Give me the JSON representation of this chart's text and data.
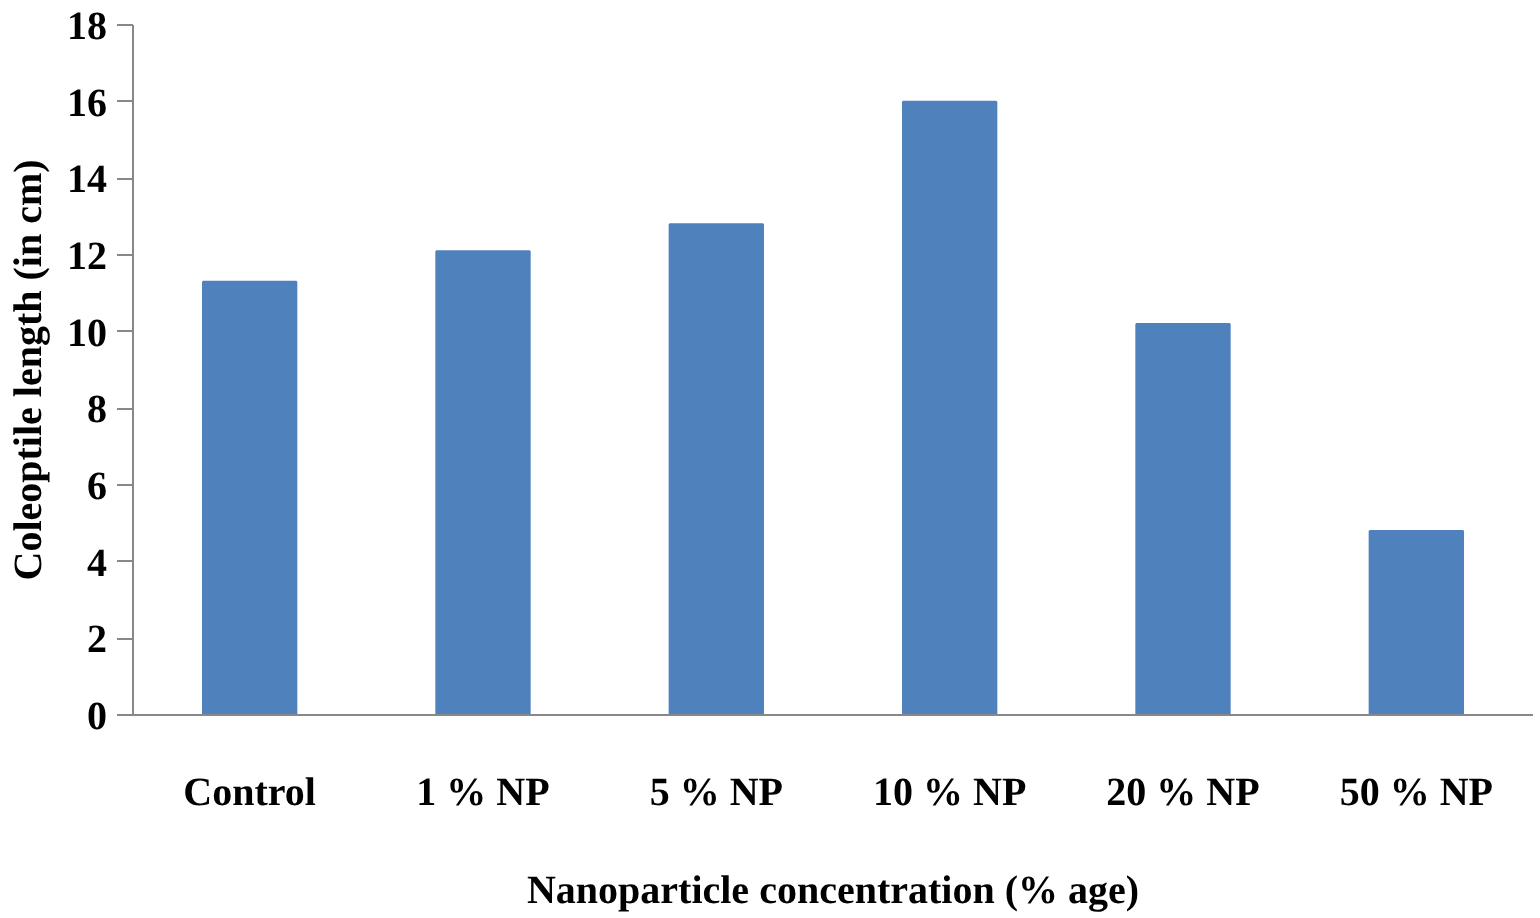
{
  "chart_data": {
    "type": "bar",
    "xlabel": "Nanoparticle concentration (% age)",
    "ylabel": "Coleoptile length (in cm)",
    "categories": [
      "Control",
      "1 % NP",
      "5 % NP",
      "10 % NP",
      "20 % NP",
      "50 % NP"
    ],
    "values": [
      11.3,
      12.1,
      12.8,
      16.0,
      10.2,
      4.8
    ],
    "color": "#4f81bd",
    "ylim": [
      0,
      18
    ],
    "yticks": [
      0,
      2,
      4,
      6,
      8,
      10,
      12,
      14,
      16,
      18
    ],
    "grid": false
  }
}
